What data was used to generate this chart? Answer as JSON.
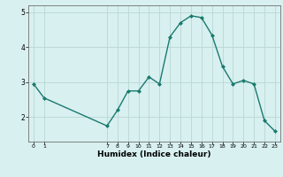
{
  "x": [
    0,
    1,
    7,
    8,
    9,
    10,
    11,
    12,
    13,
    14,
    15,
    16,
    17,
    18,
    19,
    20,
    21,
    22,
    23
  ],
  "y": [
    2.95,
    2.55,
    1.75,
    2.2,
    2.75,
    2.75,
    3.15,
    2.95,
    4.3,
    4.7,
    4.9,
    4.85,
    4.35,
    3.45,
    2.95,
    3.05,
    2.95,
    1.9,
    1.6
  ],
  "xlim": [
    -0.5,
    23.5
  ],
  "ylim": [
    1.3,
    5.2
  ],
  "yticks": [
    2,
    3,
    4,
    5
  ],
  "xticks": [
    0,
    1,
    7,
    8,
    9,
    10,
    11,
    12,
    13,
    14,
    15,
    16,
    17,
    18,
    19,
    20,
    21,
    22,
    23
  ],
  "xlabel": "Humidex (Indice chaleur)",
  "line_color": "#1a7a6e",
  "bg_color": "#d8f0f0",
  "grid_color": "#b8d8d4",
  "marker": "D",
  "markersize": 2.0,
  "linewidth": 1.0
}
